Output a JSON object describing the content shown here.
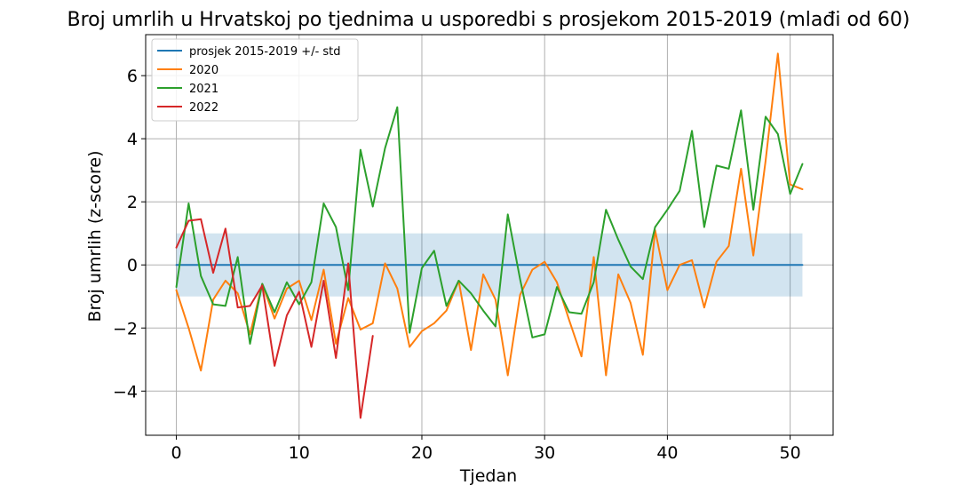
{
  "chart_data": {
    "type": "line",
    "title": "Broj umrlih u Hrvatskoj po tjednima u usporedbi s prosjekom 2015-2019 (mlađi od 60)",
    "xlabel": "Tjedan",
    "ylabel": "Broj umrlih (z-score)",
    "xlim": [
      -2.5,
      53.5
    ],
    "ylim": [
      -5.4,
      7.3
    ],
    "xticks": [
      0,
      10,
      20,
      30,
      40,
      50
    ],
    "yticks": [
      -4,
      -2,
      0,
      2,
      4,
      6
    ],
    "grid": true,
    "legend_position": "top-left",
    "band": {
      "x": [
        0,
        51
      ],
      "lower": -1,
      "upper": 1,
      "color": "#1f77b4",
      "opacity": 0.2
    },
    "series": [
      {
        "name": "prosjek 2015-2019 +/- std",
        "color": "#1f77b4",
        "x": [
          0,
          51
        ],
        "values": [
          0,
          0
        ]
      },
      {
        "name": "2020",
        "color": "#ff7f0e",
        "x": [
          0,
          1,
          2,
          3,
          4,
          5,
          6,
          7,
          8,
          9,
          10,
          11,
          12,
          13,
          14,
          15,
          16,
          17,
          18,
          19,
          20,
          21,
          22,
          23,
          24,
          25,
          26,
          27,
          28,
          29,
          30,
          31,
          32,
          33,
          34,
          35,
          36,
          37,
          38,
          39,
          40,
          41,
          42,
          43,
          44,
          45,
          46,
          47,
          48,
          49,
          50,
          51
        ],
        "values": [
          -0.8,
          -2.0,
          -3.35,
          -1.1,
          -0.5,
          -0.9,
          -2.2,
          -0.6,
          -1.7,
          -0.75,
          -0.5,
          -1.75,
          -0.15,
          -2.5,
          -1.05,
          -2.05,
          -1.85,
          0.05,
          -0.75,
          -2.6,
          -2.1,
          -1.85,
          -1.45,
          -0.5,
          -2.7,
          -0.3,
          -1.1,
          -3.5,
          -0.95,
          -0.15,
          0.1,
          -0.55,
          -1.75,
          -2.9,
          0.25,
          -3.5,
          -0.3,
          -1.2,
          -2.85,
          1.1,
          -0.8,
          0.0,
          0.15,
          -1.35,
          0.1,
          0.6,
          3.05,
          0.3,
          3.3,
          6.7,
          2.55,
          2.4
        ]
      },
      {
        "name": "2021",
        "color": "#2ca02c",
        "x": [
          0,
          1,
          2,
          3,
          4,
          5,
          6,
          7,
          8,
          9,
          10,
          11,
          12,
          13,
          14,
          15,
          16,
          17,
          18,
          19,
          20,
          21,
          22,
          23,
          24,
          25,
          26,
          27,
          28,
          29,
          30,
          31,
          32,
          33,
          34,
          35,
          36,
          37,
          38,
          39,
          40,
          41,
          42,
          43,
          44,
          45,
          46,
          47,
          48,
          49,
          50,
          51
        ],
        "values": [
          -0.7,
          1.95,
          -0.35,
          -1.25,
          -1.3,
          0.25,
          -2.5,
          -0.6,
          -1.5,
          -0.55,
          -1.25,
          -0.55,
          1.95,
          1.2,
          -0.8,
          3.65,
          1.85,
          3.7,
          5.0,
          -2.15,
          -0.1,
          0.45,
          -1.3,
          -0.5,
          -0.9,
          -1.45,
          -1.95,
          1.6,
          -0.45,
          -2.3,
          -2.2,
          -0.7,
          -1.5,
          -1.55,
          -0.55,
          1.75,
          0.8,
          -0.05,
          -0.45,
          1.2,
          1.75,
          2.35,
          4.25,
          1.2,
          3.15,
          3.05,
          4.9,
          1.75,
          4.7,
          4.15,
          2.25,
          3.2
        ]
      },
      {
        "name": "2022",
        "color": "#d62728",
        "x": [
          0,
          1,
          2,
          3,
          4,
          5,
          6,
          7,
          8,
          9,
          10,
          11,
          12,
          13,
          14,
          15,
          16
        ],
        "values": [
          0.55,
          1.4,
          1.45,
          -0.25,
          1.15,
          -1.35,
          -1.3,
          -0.65,
          -3.2,
          -1.6,
          -0.85,
          -2.6,
          -0.5,
          -2.95,
          0.05,
          -4.85,
          -2.25
        ]
      }
    ]
  }
}
